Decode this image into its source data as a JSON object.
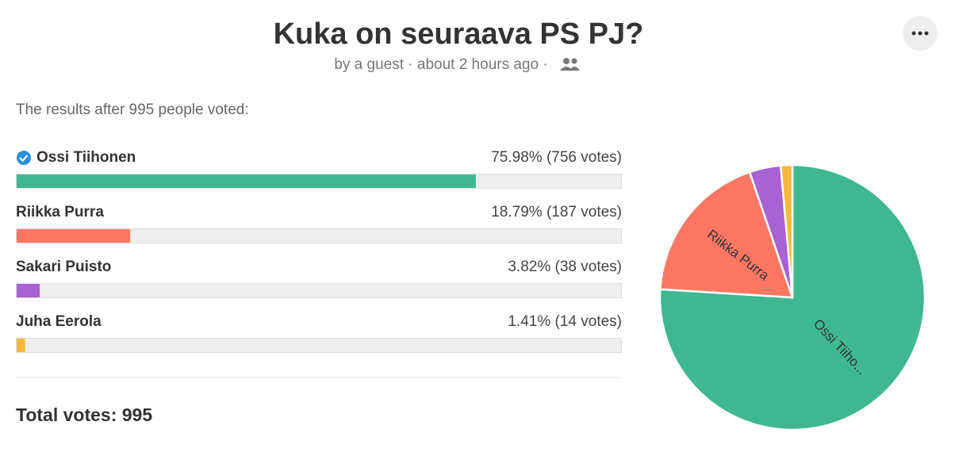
{
  "header": {
    "title": "Kuka on seuraava PS PJ?",
    "byline": "by a guest · about 2 hours ago ·"
  },
  "intro": "The results after 995 people voted:",
  "options": [
    {
      "name": "Ossi Tiihonen",
      "result": "75.98% (756 votes)",
      "percent": 75.98,
      "color": "#3fb891",
      "winner": true,
      "pie_label": "Ossi Tiiho..."
    },
    {
      "name": "Riikka Purra",
      "result": "18.79% (187 votes)",
      "percent": 18.79,
      "color": "#ff7763",
      "pie_label": "Riikka Purra"
    },
    {
      "name": "Sakari Puisto",
      "result": "3.82% (38 votes)",
      "percent": 3.82,
      "color": "#a862d4"
    },
    {
      "name": "Juha Eerola",
      "result": "1.41% (14 votes)",
      "percent": 1.41,
      "color": "#f6b93b"
    }
  ],
  "total": "Total votes: 995"
}
